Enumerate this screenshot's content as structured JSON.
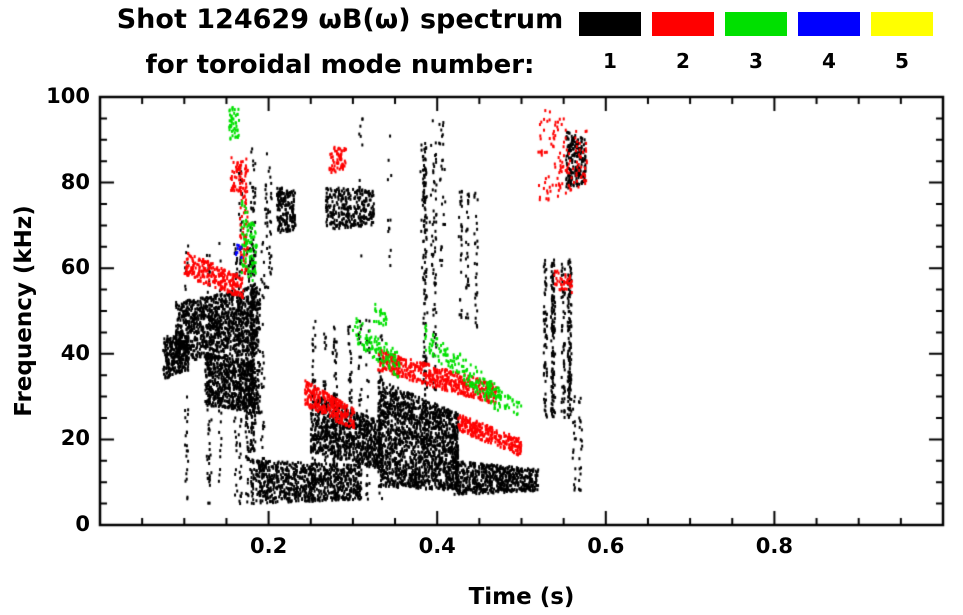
{
  "chart_data": {
    "type": "scatter",
    "title": "Shot 124629 ωB(ω) spectrum",
    "subtitle": "for toroidal mode number:",
    "xlabel": "Time (s)",
    "ylabel": "Frequency (kHz)",
    "xlim": [
      0,
      1.0
    ],
    "ylim": [
      0,
      100
    ],
    "x_major_ticks": [
      0.2,
      0.4,
      0.6,
      0.8
    ],
    "x_tick_labels": [
      "0.2",
      "0.4",
      "0.6",
      "0.8"
    ],
    "x_minor_step": 0.05,
    "y_major_ticks": [
      0,
      20,
      40,
      60,
      80,
      100
    ],
    "y_tick_labels": [
      "0",
      "20",
      "40",
      "60",
      "80",
      "100"
    ],
    "y_minor_step": 5,
    "grid": false,
    "legend_position": "top-right",
    "legend": {
      "items": [
        {
          "label": "1",
          "color": "#000000"
        },
        {
          "label": "2",
          "color": "#ff0000"
        },
        {
          "label": "3",
          "color": "#00e000"
        },
        {
          "label": "4",
          "color": "#0000ff"
        },
        {
          "label": "5",
          "color": "#ffff00"
        }
      ]
    },
    "series": [
      {
        "name": "mode n=1",
        "color": "#000000",
        "clusters": [
          {
            "kind": "band",
            "t": [
              0.075,
              0.105
            ],
            "ftop": [
              44,
              46
            ],
            "fbot": [
              34,
              36
            ],
            "n": 260
          },
          {
            "kind": "band",
            "t": [
              0.09,
              0.19
            ],
            "ftop": [
              52,
              56
            ],
            "fbot": [
              38,
              40
            ],
            "n": 1100
          },
          {
            "kind": "band",
            "t": [
              0.125,
              0.19
            ],
            "ftop": [
              40,
              38
            ],
            "fbot": [
              28,
              26
            ],
            "n": 700
          },
          {
            "kind": "columns",
            "t": [
              0.1,
              0.195
            ],
            "f": [
              5,
              66
            ],
            "cols": 14,
            "n": 600
          },
          {
            "kind": "columns",
            "t": [
              0.14,
              0.23
            ],
            "f": [
              55,
              88
            ],
            "cols": 5,
            "n": 120
          },
          {
            "kind": "band",
            "t": [
              0.185,
              0.31
            ],
            "ftop": [
              15,
              14
            ],
            "fbot": [
              5,
              6
            ],
            "n": 800
          },
          {
            "kind": "band",
            "t": [
              0.21,
              0.232
            ],
            "ftop": [
              79,
              78
            ],
            "fbot": [
              68,
              69
            ],
            "n": 180
          },
          {
            "kind": "band",
            "t": [
              0.268,
              0.325
            ],
            "ftop": [
              79,
              78
            ],
            "fbot": [
              69,
              70
            ],
            "n": 300
          },
          {
            "kind": "band",
            "t": [
              0.25,
              0.335
            ],
            "ftop": [
              31,
              24
            ],
            "fbot": [
              17,
              13
            ],
            "n": 800
          },
          {
            "kind": "columns",
            "t": [
              0.25,
              0.335
            ],
            "f": [
              6,
              48
            ],
            "cols": 8,
            "n": 350
          },
          {
            "kind": "columns",
            "t": [
              0.28,
              0.42
            ],
            "f": [
              60,
              95
            ],
            "cols": 6,
            "n": 90
          },
          {
            "kind": "band",
            "t": [
              0.33,
              0.425
            ],
            "ftop": [
              34,
              26
            ],
            "fbot": [
              9,
              8
            ],
            "n": 1600
          },
          {
            "kind": "columns",
            "t": [
              0.38,
              0.4
            ],
            "f": [
              30,
              90
            ],
            "cols": 3,
            "n": 200
          },
          {
            "kind": "band",
            "t": [
              0.42,
              0.52
            ],
            "ftop": [
              15,
              13
            ],
            "fbot": [
              7,
              8
            ],
            "n": 600
          },
          {
            "kind": "columns",
            "t": [
              0.425,
              0.46
            ],
            "f": [
              45,
              78
            ],
            "cols": 3,
            "n": 90
          },
          {
            "kind": "columns",
            "t": [
              0.518,
              0.558
            ],
            "f": [
              25,
              62
            ],
            "cols": 6,
            "n": 420
          },
          {
            "kind": "band",
            "t": [
              0.553,
              0.576
            ],
            "ftop": [
              92,
              90
            ],
            "fbot": [
              78,
              80
            ],
            "n": 200
          },
          {
            "kind": "columns",
            "t": [
              0.555,
              0.575
            ],
            "f": [
              8,
              30
            ],
            "cols": 2,
            "n": 40
          }
        ]
      },
      {
        "name": "mode n=2",
        "color": "#ff0000",
        "clusters": [
          {
            "kind": "band",
            "t": [
              0.1,
              0.17
            ],
            "ftop": [
              64,
              58
            ],
            "fbot": [
              58,
              53
            ],
            "n": 260
          },
          {
            "kind": "columns",
            "t": [
              0.152,
              0.175
            ],
            "f": [
              58,
              86
            ],
            "cols": 3,
            "n": 90
          },
          {
            "kind": "band",
            "t": [
              0.155,
              0.168
            ],
            "ftop": [
              86,
              84
            ],
            "fbot": [
              78,
              78
            ],
            "n": 40
          },
          {
            "kind": "band",
            "t": [
              0.243,
              0.302
            ],
            "ftop": [
              34,
              27
            ],
            "fbot": [
              28,
              22
            ],
            "n": 300
          },
          {
            "kind": "band",
            "t": [
              0.272,
              0.292
            ],
            "ftop": [
              89,
              88
            ],
            "fbot": [
              82,
              83
            ],
            "n": 60
          },
          {
            "kind": "band",
            "t": [
              0.33,
              0.47
            ],
            "ftop": [
              41,
              33
            ],
            "fbot": [
              36,
              28
            ],
            "n": 520
          },
          {
            "kind": "band",
            "t": [
              0.425,
              0.5
            ],
            "ftop": [
              26,
              20
            ],
            "fbot": [
              22,
              16
            ],
            "n": 260
          },
          {
            "kind": "band",
            "t": [
              0.52,
              0.578
            ],
            "ftop": [
              98,
              92
            ],
            "fbot": [
              74,
              80
            ],
            "n": 130
          },
          {
            "kind": "band",
            "t": [
              0.538,
              0.56
            ],
            "ftop": [
              60,
              58
            ],
            "fbot": [
              55,
              54
            ],
            "n": 40
          }
        ]
      },
      {
        "name": "mode n=3",
        "color": "#00e000",
        "clusters": [
          {
            "kind": "band",
            "t": [
              0.153,
              0.166
            ],
            "ftop": [
              98,
              97
            ],
            "fbot": [
              90,
              90
            ],
            "n": 45
          },
          {
            "kind": "band",
            "t": [
              0.168,
              0.186
            ],
            "ftop": [
              76,
              70
            ],
            "fbot": [
              58,
              56
            ],
            "n": 90
          },
          {
            "kind": "band",
            "t": [
              0.3,
              0.355
            ],
            "ftop": [
              49,
              40
            ],
            "fbot": [
              43,
              34
            ],
            "n": 110
          },
          {
            "kind": "band",
            "t": [
              0.325,
              0.34
            ],
            "ftop": [
              52,
              50
            ],
            "fbot": [
              47,
              46
            ],
            "n": 25
          },
          {
            "kind": "band",
            "t": [
              0.385,
              0.475
            ],
            "ftop": [
              47,
              32
            ],
            "fbot": [
              41,
              26
            ],
            "n": 160
          },
          {
            "kind": "band",
            "t": [
              0.46,
              0.5
            ],
            "ftop": [
              33,
              29
            ],
            "fbot": [
              29,
              25
            ],
            "n": 50
          }
        ]
      },
      {
        "name": "mode n=4",
        "color": "#0000ff",
        "clusters": [
          {
            "kind": "band",
            "t": [
              0.161,
              0.168
            ],
            "ftop": [
              66,
              65
            ],
            "fbot": [
              62,
              62
            ],
            "n": 10
          }
        ]
      },
      {
        "name": "mode n=5",
        "color": "#ffff00",
        "clusters": []
      }
    ]
  }
}
